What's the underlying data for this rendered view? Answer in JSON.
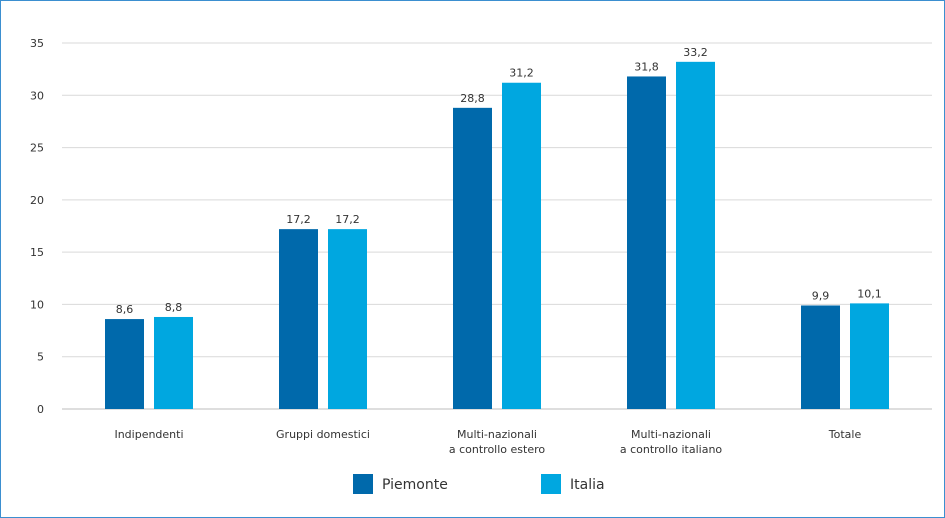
{
  "chart_data": {
    "type": "bar",
    "categories": [
      [
        "Indipendenti"
      ],
      [
        "Gruppi domestici"
      ],
      [
        "Multi-nazionali",
        "a controllo estero"
      ],
      [
        "Multi-nazionali",
        "a controllo italiano"
      ],
      [
        "Totale"
      ]
    ],
    "series": [
      {
        "name": "Piemonte",
        "color": "#0069ab",
        "values": [
          8.6,
          17.2,
          28.8,
          31.8,
          9.9
        ],
        "labels": [
          "8,6",
          "17,2",
          "28,8",
          "31,8",
          "9,9"
        ]
      },
      {
        "name": "Italia",
        "color": "#00a7e0",
        "values": [
          8.8,
          17.2,
          31.2,
          33.2,
          10.1
        ],
        "labels": [
          "8,8",
          "17,2",
          "31,2",
          "33,2",
          "10,1"
        ]
      }
    ],
    "ylim": [
      0,
      35
    ],
    "yticks": [
      "0",
      "5",
      "10",
      "15",
      "20",
      "25",
      "30",
      "35"
    ],
    "grid": true,
    "legend_position": "bottom-center",
    "title": "",
    "xlabel": "",
    "ylabel": ""
  }
}
